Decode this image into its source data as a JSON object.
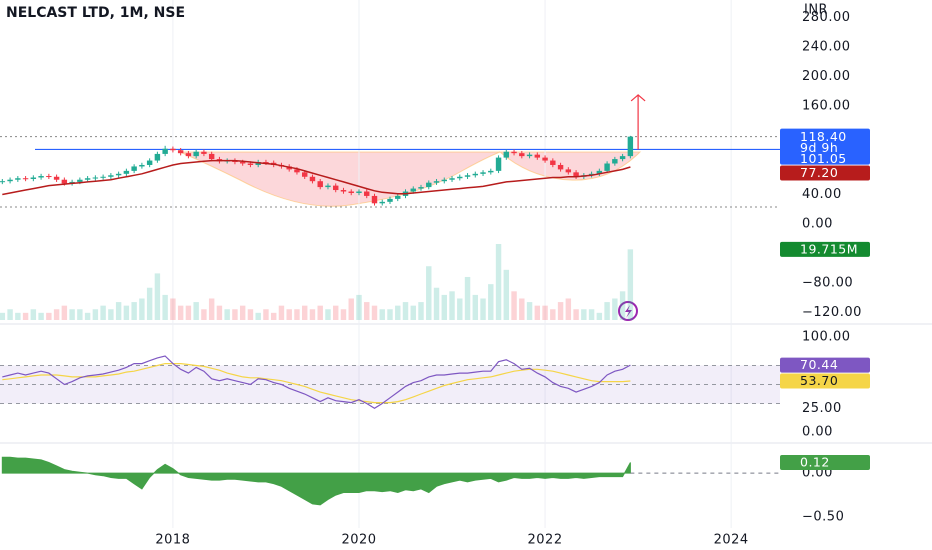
{
  "chart_data": [
    {
      "type": "candlestick",
      "title": "NELCAST LTD, 1M, NSE",
      "currency": "INR",
      "up_color": "#22ab94",
      "down_color": "#f23645",
      "xlim": [
        -0.3,
        100.3
      ],
      "xticks": [
        {
          "value": 22,
          "label": "2018"
        },
        {
          "value": 46,
          "label": "2020"
        },
        {
          "value": 70,
          "label": "2022"
        },
        {
          "value": 94,
          "label": "2024"
        }
      ],
      "ylim": [
        -133,
        297
      ],
      "yticks": [
        {
          "value": 280,
          "label": "280.00"
        },
        {
          "value": 240,
          "label": "240.00"
        },
        {
          "value": 200,
          "label": "200.00"
        },
        {
          "value": 160,
          "label": "160.00"
        },
        {
          "value": 40,
          "label": "40.00"
        },
        {
          "value": 0,
          "label": "0.00"
        },
        {
          "value": -80,
          "label": "−80.00"
        },
        {
          "value": -120,
          "label": "−120.00"
        }
      ],
      "open": [
        57,
        58,
        60,
        62,
        61,
        63,
        65,
        64,
        60,
        55,
        57,
        60,
        62,
        63,
        64,
        66,
        68,
        72,
        78,
        80,
        86,
        95,
        102,
        100,
        96,
        92,
        98,
        95,
        88,
        85,
        86,
        84,
        82,
        80,
        84,
        83,
        80,
        78,
        74,
        70,
        64,
        58,
        50,
        52,
        46,
        44,
        42,
        44,
        38,
        28,
        30,
        34,
        38,
        44,
        48,
        50,
        56,
        58,
        60,
        62,
        64,
        66,
        68,
        70,
        72,
        90,
        98,
        96,
        92,
        94,
        90,
        86,
        80,
        74,
        70,
        64,
        66,
        68,
        72,
        82,
        88,
        92
      ],
      "high": [
        61,
        63,
        65,
        65,
        66,
        68,
        68,
        67,
        63,
        60,
        63,
        65,
        66,
        67,
        69,
        71,
        75,
        81,
        83,
        89,
        98,
        106,
        105,
        103,
        99,
        101,
        101,
        98,
        91,
        89,
        89,
        87,
        85,
        87,
        87,
        86,
        83,
        81,
        77,
        73,
        67,
        61,
        55,
        55,
        49,
        47,
        47,
        47,
        41,
        33,
        37,
        41,
        47,
        51,
        53,
        59,
        61,
        63,
        65,
        67,
        69,
        71,
        73,
        75,
        93,
        101,
        101,
        99,
        97,
        97,
        93,
        89,
        83,
        77,
        73,
        69,
        71,
        75,
        85,
        91,
        95,
        119.5
      ],
      "low": [
        54,
        55,
        57,
        58,
        58,
        60,
        61,
        57,
        52,
        52,
        54,
        57,
        59,
        60,
        61,
        63,
        65,
        69,
        75,
        77,
        83,
        92,
        97,
        93,
        89,
        89,
        92,
        85,
        82,
        82,
        81,
        79,
        77,
        77,
        80,
        77,
        75,
        71,
        67,
        61,
        55,
        47,
        47,
        43,
        41,
        39,
        39,
        35,
        25,
        25,
        27,
        31,
        35,
        41,
        45,
        47,
        53,
        55,
        57,
        59,
        61,
        63,
        65,
        67,
        69,
        87,
        93,
        89,
        89,
        87,
        83,
        77,
        71,
        67,
        61,
        61,
        63,
        65,
        69,
        79,
        85,
        89
      ],
      "close": [
        58,
        60,
        62,
        61,
        63,
        65,
        64,
        60,
        55,
        57,
        60,
        62,
        63,
        64,
        66,
        68,
        72,
        78,
        80,
        86,
        95,
        102,
        100,
        96,
        92,
        98,
        95,
        88,
        85,
        86,
        84,
        82,
        80,
        84,
        83,
        80,
        78,
        74,
        70,
        64,
        58,
        50,
        52,
        46,
        44,
        42,
        44,
        38,
        28,
        30,
        34,
        38,
        44,
        48,
        50,
        56,
        58,
        60,
        62,
        64,
        66,
        68,
        70,
        72,
        90,
        98,
        96,
        92,
        94,
        90,
        86,
        80,
        74,
        70,
        64,
        66,
        68,
        72,
        82,
        88,
        92,
        118.4
      ],
      "close_label": {
        "value": 118.4,
        "label": "118.40",
        "color": "#2962ff"
      },
      "countdown": "9d 9h",
      "resistance": {
        "value": 101.05,
        "label": "101.05",
        "color": "#2962ff"
      },
      "dotted_levels": [
        118.4,
        23
      ],
      "target": 175,
      "target_color": "#f23645",
      "ma": {
        "color": "#b71c1c",
        "values": [
          40,
          42,
          44,
          46,
          48,
          50,
          52,
          53,
          54,
          55,
          56,
          57,
          58,
          59,
          60,
          62,
          64,
          66,
          68,
          71,
          74,
          77,
          80,
          82,
          83,
          84,
          85,
          86,
          86,
          86,
          86,
          85,
          84,
          83,
          82,
          81,
          79,
          77,
          75,
          72,
          69,
          66,
          63,
          60,
          57,
          54,
          51,
          48,
          45,
          43,
          42,
          41,
          41,
          42,
          43,
          44,
          45,
          46,
          47,
          48,
          49,
          50,
          51,
          53,
          55,
          57,
          58,
          59,
          60,
          61,
          62,
          63,
          63,
          64,
          64,
          65,
          66,
          68,
          70,
          72,
          74,
          77.2
        ],
        "last_label": {
          "value": 77.2,
          "label": "77.20"
        }
      }
    },
    {
      "type": "bar",
      "up_color": "rgba(34,171,148,0.22)",
      "down_color": "rgba(242,54,69,0.22)",
      "values": [
        2,
        3,
        2,
        2,
        3,
        2,
        2,
        3,
        4,
        3,
        3,
        2,
        3,
        4,
        3,
        5,
        4,
        5,
        6,
        9,
        13,
        7,
        6,
        4,
        4,
        5,
        3,
        6,
        4,
        3,
        3,
        4,
        3,
        2,
        3,
        2,
        4,
        3,
        3,
        4,
        3,
        4,
        3,
        4,
        3,
        6,
        7,
        5,
        4,
        3,
        3,
        4,
        5,
        4,
        5,
        15,
        9,
        7,
        8,
        6,
        12,
        7,
        6,
        10,
        21.2,
        14,
        8,
        6,
        5,
        4,
        4,
        3,
        5,
        6,
        3,
        3,
        3,
        2,
        5,
        6,
        8,
        19.715
      ],
      "last_label": {
        "value": 19.715,
        "label": "19.715M",
        "color": "#138a2f"
      }
    },
    {
      "type": "line",
      "ylim": [
        -10.5,
        110.5
      ],
      "yticks": [
        {
          "value": 100,
          "label": "100.00"
        },
        {
          "value": 25,
          "label": "25.00"
        },
        {
          "value": 0,
          "label": "0.00"
        }
      ],
      "levels": [
        30,
        50,
        70
      ],
      "series": [
        {
          "color": "#7e57c2",
          "values": [
            58,
            60,
            62,
            60,
            62,
            64,
            62,
            56,
            50,
            53,
            57,
            59,
            60,
            61,
            63,
            65,
            68,
            72,
            72,
            75,
            78,
            80,
            72,
            66,
            62,
            68,
            64,
            56,
            54,
            56,
            54,
            52,
            50,
            56,
            55,
            52,
            50,
            46,
            43,
            40,
            36,
            32,
            36,
            33,
            32,
            31,
            34,
            30,
            25,
            30,
            36,
            42,
            48,
            52,
            54,
            58,
            60,
            60,
            61,
            62,
            62,
            63,
            64,
            64,
            74,
            76,
            72,
            66,
            67,
            62,
            58,
            52,
            48,
            46,
            42,
            45,
            48,
            52,
            60,
            64,
            66,
            70.44
          ],
          "last_label": {
            "value": 70.44,
            "label": "70.44"
          }
        },
        {
          "color": "#f5d547",
          "values": [
            55,
            56,
            57,
            58,
            59,
            60,
            60,
            60,
            59,
            58,
            58,
            58,
            58,
            59,
            60,
            61,
            63,
            64,
            66,
            68,
            70,
            72,
            72,
            72,
            71,
            70,
            69,
            67,
            65,
            62,
            60,
            58,
            57,
            57,
            56,
            55,
            54,
            52,
            50,
            48,
            45,
            42,
            40,
            38,
            36,
            34,
            33,
            32,
            31,
            31,
            31,
            32,
            34,
            37,
            40,
            43,
            46,
            49,
            51,
            53,
            55,
            56,
            57,
            58,
            60,
            62,
            64,
            65,
            66,
            66,
            65,
            64,
            62,
            60,
            58,
            56,
            54,
            53,
            53,
            53,
            53,
            53.7
          ],
          "last_label": {
            "value": 53.7,
            "label": "53.70"
          }
        }
      ]
    },
    {
      "type": "area",
      "color": "#43a047",
      "ylim": [
        -0.85,
        0.33
      ],
      "yticks": [
        {
          "value": 0,
          "label": "0.00"
        },
        {
          "value": -0.5,
          "label": "−0.50"
        }
      ],
      "values": [
        0.18,
        0.18,
        0.17,
        0.17,
        0.16,
        0.15,
        0.12,
        0.08,
        0.04,
        0.02,
        0.01,
        0,
        -0.02,
        -0.03,
        -0.05,
        -0.06,
        -0.06,
        -0.12,
        -0.18,
        -0.05,
        0.04,
        0.1,
        0.05,
        -0.02,
        -0.05,
        -0.06,
        -0.07,
        -0.08,
        -0.08,
        -0.07,
        -0.07,
        -0.08,
        -0.09,
        -0.1,
        -0.1,
        -0.12,
        -0.15,
        -0.2,
        -0.25,
        -0.3,
        -0.35,
        -0.36,
        -0.3,
        -0.25,
        -0.22,
        -0.22,
        -0.22,
        -0.2,
        -0.2,
        -0.21,
        -0.2,
        -0.22,
        -0.19,
        -0.2,
        -0.18,
        -0.22,
        -0.15,
        -0.12,
        -0.1,
        -0.08,
        -0.1,
        -0.08,
        -0.07,
        -0.06,
        -0.1,
        -0.08,
        -0.05,
        -0.06,
        -0.06,
        -0.05,
        -0.06,
        -0.05,
        -0.06,
        -0.06,
        -0.05,
        -0.06,
        -0.05,
        -0.04,
        -0.04,
        -0.04,
        -0.04,
        0.12
      ],
      "last_label": {
        "value": 0.12,
        "label": "0.12"
      }
    }
  ]
}
